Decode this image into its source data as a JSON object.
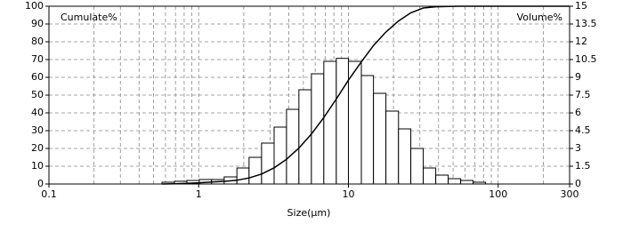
{
  "chart_data": {
    "type": "histogram",
    "xlabel": "Size(µm)",
    "ylabel": "Cumulate%",
    "y2label": "Volume%",
    "xscale": "log",
    "xlim": [
      0.1,
      300
    ],
    "xticks": [
      0.1,
      1,
      10,
      100,
      300
    ],
    "xgrid_minor": [
      0.2,
      0.3,
      0.4,
      0.5,
      0.6,
      0.7,
      0.8,
      0.9,
      2,
      3,
      4,
      5,
      6,
      7,
      8,
      9,
      20,
      30,
      40,
      50,
      60,
      70,
      80,
      90,
      200
    ],
    "ylim": [
      0,
      100
    ],
    "yticks": [
      0,
      10,
      20,
      30,
      40,
      50,
      60,
      70,
      80,
      90,
      100
    ],
    "y2lim": [
      0,
      15
    ],
    "y2ticks": [
      0,
      1.5,
      3,
      4.5,
      6,
      7.5,
      9,
      10.5,
      12,
      13.5,
      15
    ],
    "grid": true,
    "bar_color": "#ffffff",
    "edge_color": "#000000",
    "bins": [
      0.569,
      0.689,
      0.834,
      1.01,
      1.22,
      1.48,
      1.8,
      2.17,
      2.63,
      3.19,
      3.86,
      4.67,
      5.66,
      6.85,
      8.3,
      10.0,
      12.2,
      14.7,
      17.8,
      21.6,
      26.1,
      31.6,
      38.3,
      46.4,
      56.2,
      68.0,
      82.4
    ],
    "counts": [
      0.15,
      0.23,
      0.3,
      0.38,
      0.38,
      0.6,
      1.35,
      2.25,
      3.45,
      4.8,
      6.3,
      7.95,
      9.3,
      10.35,
      10.6,
      10.35,
      9.15,
      7.65,
      6.15,
      4.65,
      3.0,
      1.35,
      0.75,
      0.45,
      0.3,
      0.15
    ],
    "cumulative": {
      "color": "#000000",
      "x": [
        0.569,
        0.689,
        0.834,
        1.01,
        1.22,
        1.48,
        1.8,
        2.17,
        2.63,
        3.19,
        3.86,
        4.67,
        5.66,
        6.85,
        8.3,
        10.0,
        12.2,
        14.7,
        17.8,
        21.6,
        26.1,
        31.6,
        38.3,
        46.4,
        56.2,
        68.0,
        82.4,
        300
      ],
      "values": [
        0,
        0.15,
        0.4,
        0.7,
        1.1,
        1.5,
        2.1,
        3.4,
        5.6,
        9.1,
        13.9,
        20.2,
        28.1,
        37.4,
        47.8,
        58.4,
        68.7,
        77.9,
        85.5,
        91.7,
        96.3,
        99.0,
        99.7,
        99.9,
        100,
        100,
        100,
        100
      ]
    }
  }
}
